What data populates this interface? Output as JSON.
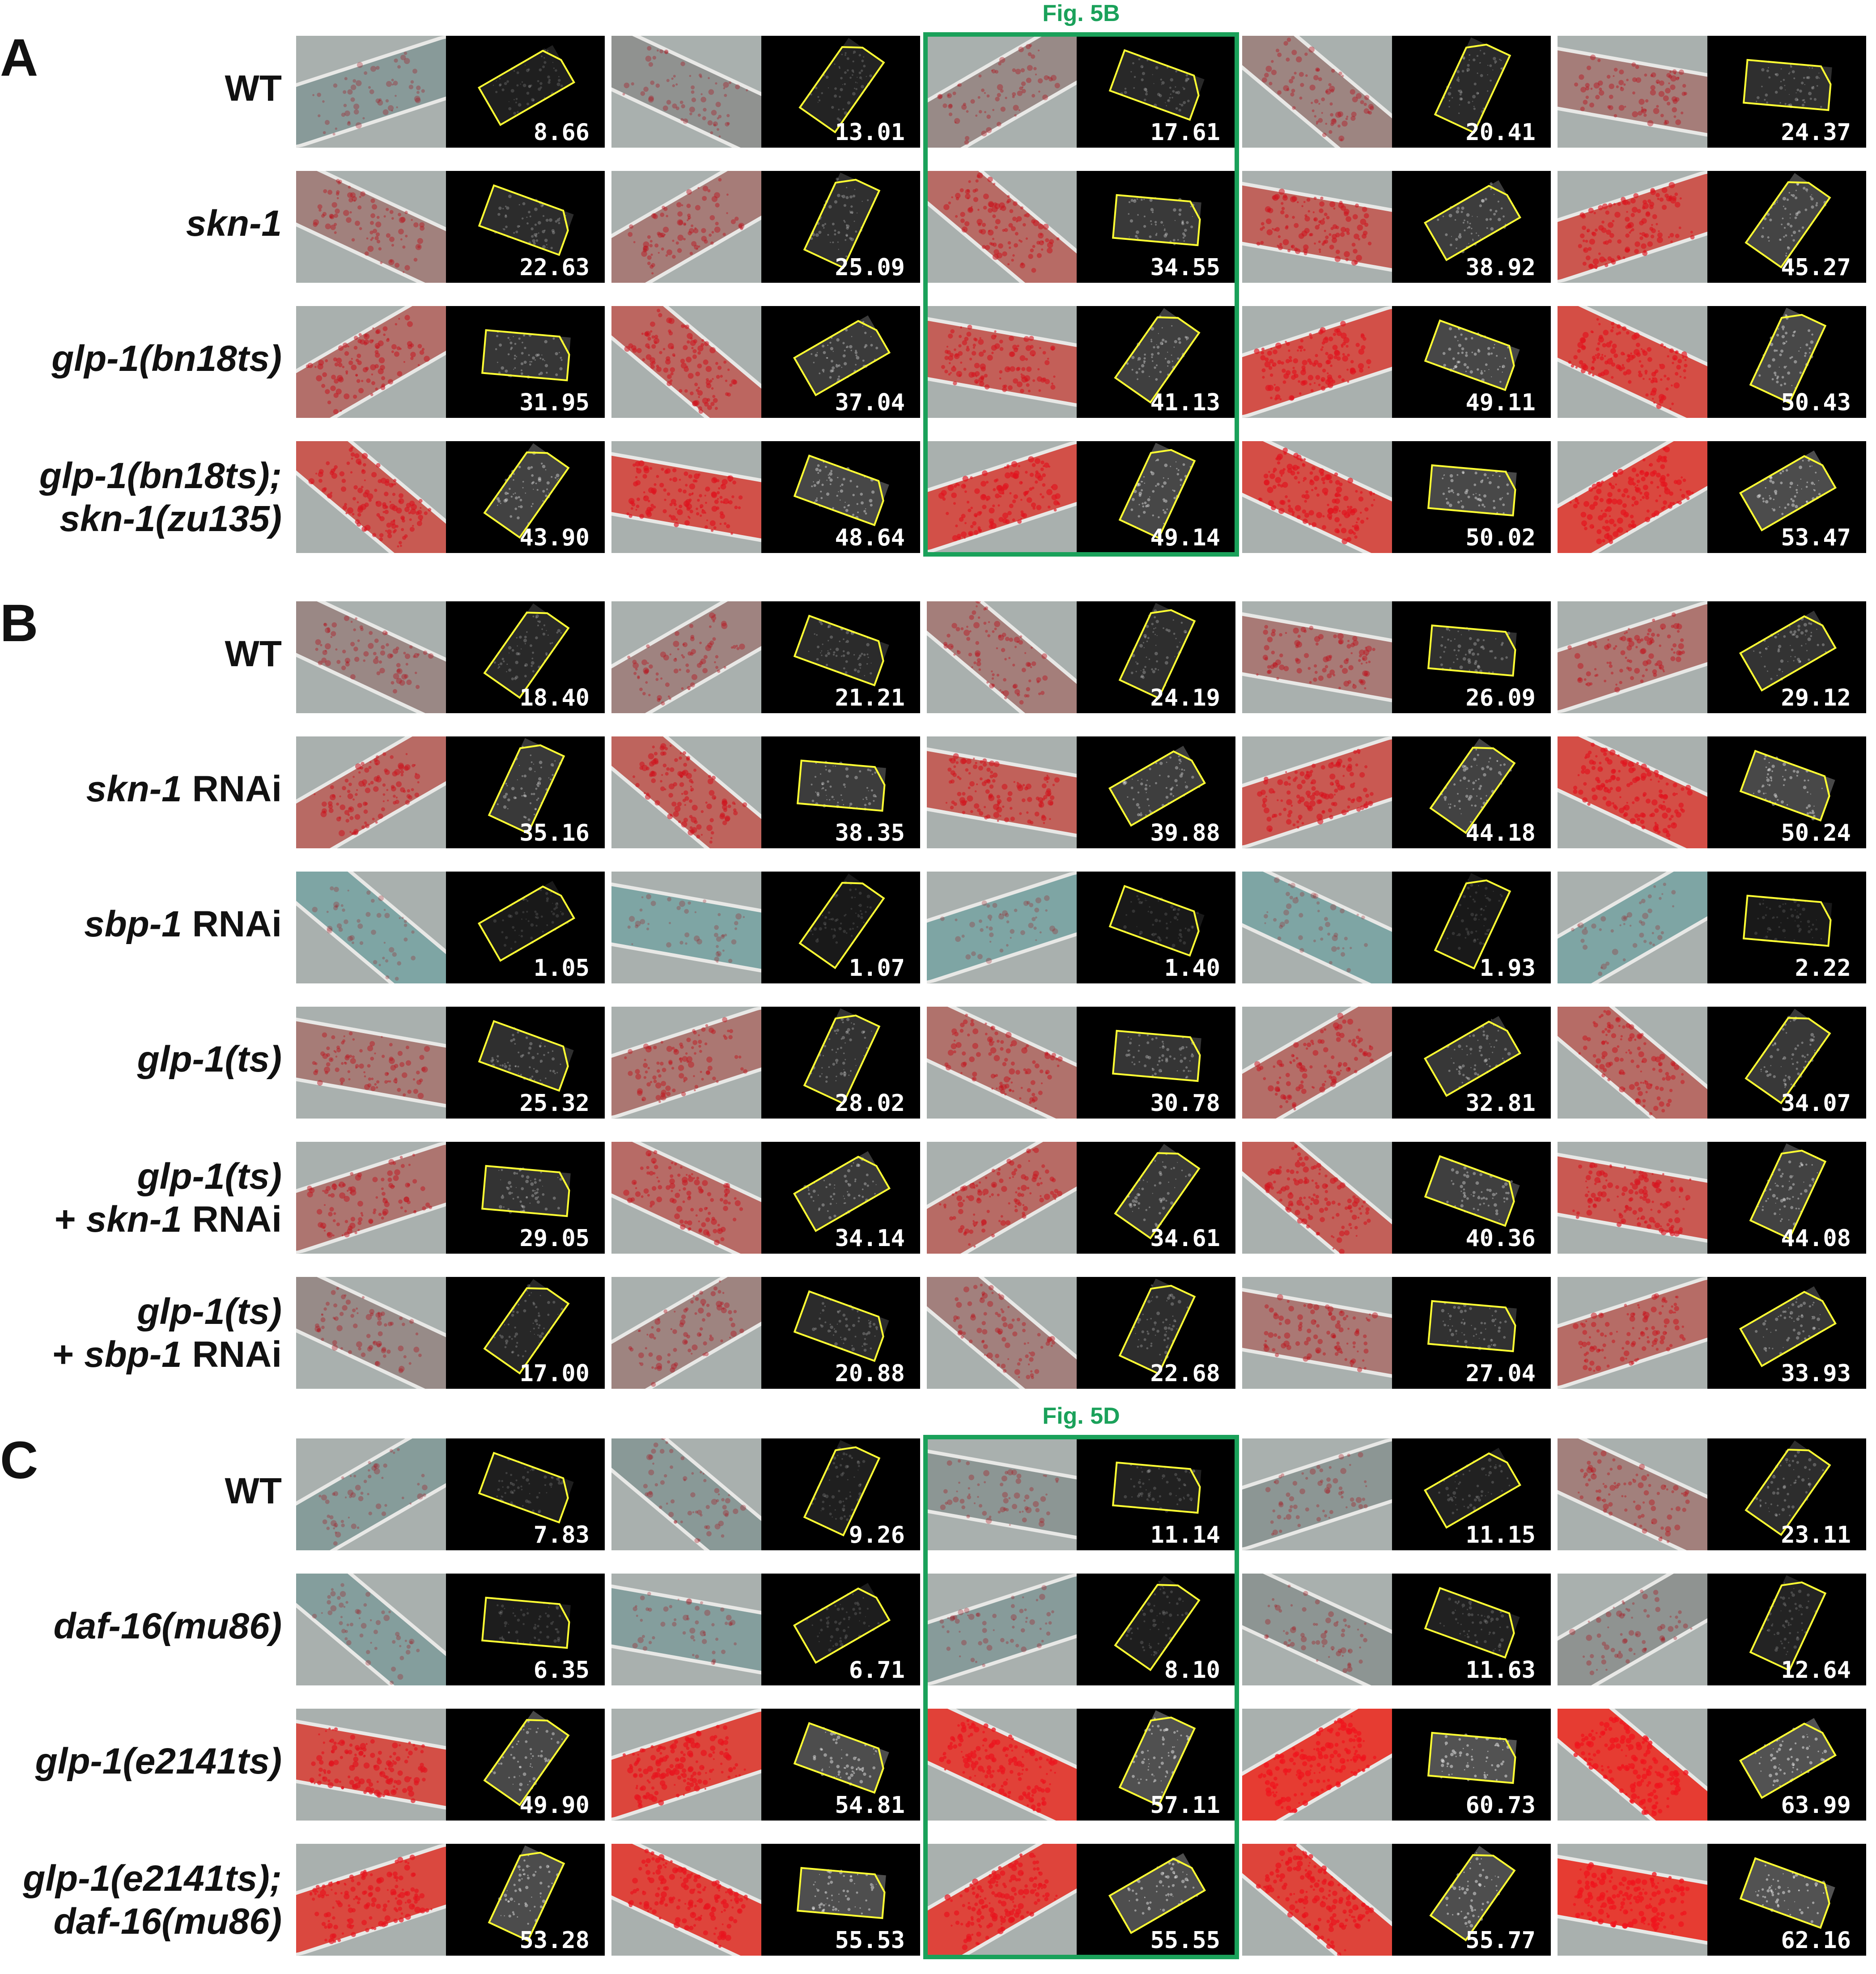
{
  "highlight_color": "#1aa15a",
  "roi_color": "#ffff33",
  "panels": [
    {
      "letter": "A",
      "highlight": "Fig. 5B",
      "rows": [
        {
          "label": [
            {
              "t": "WT",
              "i": false
            }
          ],
          "values": [
            "8.66",
            "13.01",
            "17.61",
            "20.41",
            "24.37"
          ]
        },
        {
          "label": [
            {
              "t": "skn-1",
              "i": true
            }
          ],
          "values": [
            "22.63",
            "25.09",
            "34.55",
            "38.92",
            "45.27"
          ]
        },
        {
          "label": [
            {
              "t": "glp-1(bn18ts)",
              "i": true
            }
          ],
          "values": [
            "31.95",
            "37.04",
            "41.13",
            "49.11",
            "50.43"
          ]
        },
        {
          "label": [
            {
              "t": "glp-1(bn18ts);",
              "i": true
            }
          ],
          "label2": [
            {
              "t": "skn-1(zu135)",
              "i": true
            }
          ],
          "values": [
            "43.90",
            "48.64",
            "49.14",
            "50.02",
            "53.47"
          ]
        }
      ]
    },
    {
      "letter": "B",
      "highlight": "",
      "rows": [
        {
          "label": [
            {
              "t": "WT",
              "i": false
            }
          ],
          "values": [
            "18.40",
            "21.21",
            "24.19",
            "26.09",
            "29.12"
          ]
        },
        {
          "label": [
            {
              "t": "skn-1",
              "i": true
            },
            {
              "t": " RNAi",
              "i": false
            }
          ],
          "values": [
            "35.16",
            "38.35",
            "39.88",
            "44.18",
            "50.24"
          ]
        },
        {
          "label": [
            {
              "t": "sbp-1",
              "i": true
            },
            {
              "t": " RNAi",
              "i": false
            }
          ],
          "values": [
            "1.05",
            "1.07",
            "1.40",
            "1.93",
            "2.22"
          ]
        },
        {
          "label": [
            {
              "t": "glp-1(ts)",
              "i": true
            }
          ],
          "values": [
            "25.32",
            "28.02",
            "30.78",
            "32.81",
            "34.07"
          ]
        },
        {
          "label": [
            {
              "t": "glp-1(ts)",
              "i": true
            }
          ],
          "label2": [
            {
              "t": "+ ",
              "i": false
            },
            {
              "t": "skn-1",
              "i": true
            },
            {
              "t": " RNAi",
              "i": false
            }
          ],
          "values": [
            "29.05",
            "34.14",
            "34.61",
            "40.36",
            "44.08"
          ]
        },
        {
          "label": [
            {
              "t": "glp-1(ts)",
              "i": true
            }
          ],
          "label2": [
            {
              "t": "+ ",
              "i": false
            },
            {
              "t": "sbp-1",
              "i": true
            },
            {
              "t": " RNAi",
              "i": false
            }
          ],
          "values": [
            "17.00",
            "20.88",
            "22.68",
            "27.04",
            "33.93"
          ]
        }
      ]
    },
    {
      "letter": "C",
      "highlight": "Fig. 5D",
      "rows": [
        {
          "label": [
            {
              "t": "WT",
              "i": false
            }
          ],
          "values": [
            "7.83",
            "9.26",
            "11.14",
            "11.15",
            "23.11"
          ]
        },
        {
          "label": [
            {
              "t": "daf-16(mu86)",
              "i": true
            }
          ],
          "values": [
            "6.35",
            "6.71",
            "8.10",
            "11.63",
            "12.64"
          ]
        },
        {
          "label": [
            {
              "t": "glp-1(e2141ts)",
              "i": true
            }
          ],
          "values": [
            "49.90",
            "54.81",
            "57.11",
            "60.73",
            "63.99"
          ]
        },
        {
          "label": [
            {
              "t": "glp-1(e2141ts);",
              "i": true
            }
          ],
          "label2": [
            {
              "t": "daf-16(mu86)",
              "i": true
            }
          ],
          "values": [
            "53.28",
            "55.53",
            "55.55",
            "55.77",
            "62.16"
          ]
        }
      ]
    }
  ]
}
